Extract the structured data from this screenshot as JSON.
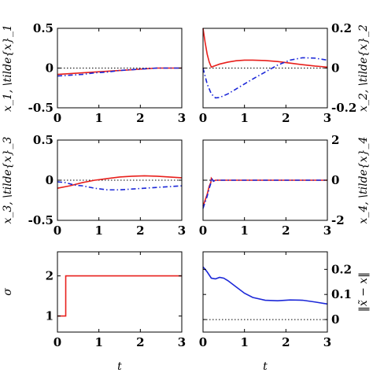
{
  "colors": {
    "red": "#e8201c",
    "blue": "#1c28d8",
    "ref": "#000000"
  },
  "chart_data": [
    {
      "id": "x1",
      "type": "line",
      "ylabel": "x_1, \\tilde{x}_1",
      "ylabel_side": "left",
      "xlim": [
        0,
        3
      ],
      "ylim": [
        -0.5,
        0.5
      ],
      "xticks": [
        "0",
        "1",
        "2",
        "3"
      ],
      "yticks": [
        {
          "v": -0.5,
          "t": "-0.5"
        },
        {
          "v": 0,
          "t": "0"
        },
        {
          "v": 0.5,
          "t": "0.5"
        }
      ],
      "zero_line": 0,
      "series": [
        {
          "style": "solid",
          "color": "#e8201c",
          "x": [
            0,
            0.3,
            0.6,
            0.9,
            1.2,
            1.5,
            1.8,
            2.1,
            2.4,
            2.7,
            3.0
          ],
          "y": [
            -0.08,
            -0.07,
            -0.06,
            -0.05,
            -0.04,
            -0.03,
            -0.02,
            -0.01,
            0,
            0,
            0
          ]
        },
        {
          "style": "dashdot",
          "color": "#1c28d8",
          "x": [
            0,
            0.3,
            0.6,
            0.9,
            1.2,
            1.5,
            1.8,
            2.1,
            2.4,
            2.7,
            3.0
          ],
          "y": [
            -0.1,
            -0.09,
            -0.08,
            -0.06,
            -0.05,
            -0.03,
            -0.02,
            -0.01,
            0,
            0,
            0
          ]
        }
      ]
    },
    {
      "id": "x2",
      "type": "line",
      "ylabel": "x_2, \\tilde{x}_2",
      "ylabel_side": "right",
      "xlim": [
        0,
        3
      ],
      "ylim": [
        -0.2,
        0.2
      ],
      "xticks": [
        "0",
        "1",
        "2",
        "3"
      ],
      "yticks": [
        {
          "v": -0.2,
          "t": "-0.2"
        },
        {
          "v": 0,
          "t": "0"
        },
        {
          "v": 0.2,
          "t": "0.2"
        }
      ],
      "zero_line": 0,
      "series": [
        {
          "style": "solid",
          "color": "#e8201c",
          "x": [
            0,
            0.05,
            0.1,
            0.15,
            0.2,
            0.4,
            0.6,
            0.8,
            1.0,
            1.2,
            1.5,
            1.8,
            2.1,
            2.4,
            2.7,
            3.0
          ],
          "y": [
            0.2,
            0.13,
            0.07,
            0.03,
            0.005,
            0.02,
            0.03,
            0.037,
            0.04,
            0.04,
            0.038,
            0.033,
            0.025,
            0.017,
            0.01,
            0.005
          ]
        },
        {
          "style": "dashdot",
          "color": "#1c28d8",
          "x": [
            0,
            0.1,
            0.2,
            0.3,
            0.4,
            0.6,
            0.8,
            1.0,
            1.2,
            1.5,
            1.8,
            2.1,
            2.4,
            2.7,
            3.0
          ],
          "y": [
            0,
            -0.08,
            -0.13,
            -0.15,
            -0.148,
            -0.13,
            -0.105,
            -0.08,
            -0.055,
            -0.02,
            0.015,
            0.04,
            0.052,
            0.05,
            0.04
          ]
        }
      ]
    },
    {
      "id": "x3",
      "type": "line",
      "ylabel": "x_3, \\tilde{x}_3",
      "ylabel_side": "left",
      "xlim": [
        0,
        3
      ],
      "ylim": [
        -0.5,
        0.5
      ],
      "xticks": [
        "0",
        "1",
        "2",
        "3"
      ],
      "yticks": [
        {
          "v": -0.5,
          "t": "-0.5"
        },
        {
          "v": 0,
          "t": "0"
        },
        {
          "v": 0.5,
          "t": "0.5"
        }
      ],
      "zero_line": 0,
      "series": [
        {
          "style": "solid",
          "color": "#e8201c",
          "x": [
            0,
            0.3,
            0.6,
            0.9,
            1.2,
            1.5,
            1.8,
            2.1,
            2.4,
            2.7,
            3.0
          ],
          "y": [
            -0.1,
            -0.07,
            -0.03,
            0,
            0.02,
            0.04,
            0.05,
            0.055,
            0.05,
            0.04,
            0.03
          ]
        },
        {
          "style": "dashdot",
          "color": "#1c28d8",
          "x": [
            0,
            0.2,
            0.4,
            0.6,
            0.9,
            1.2,
            1.5,
            1.8,
            2.1,
            2.4,
            2.7,
            3.0
          ],
          "y": [
            -0.02,
            -0.03,
            -0.06,
            -0.07,
            -0.1,
            -0.12,
            -0.12,
            -0.11,
            -0.1,
            -0.09,
            -0.08,
            -0.07
          ]
        }
      ]
    },
    {
      "id": "x4",
      "type": "line",
      "ylabel": "x_4, \\tilde{x}_4",
      "ylabel_side": "right",
      "xlim": [
        0,
        3
      ],
      "ylim": [
        -2,
        2
      ],
      "xticks": [
        "0",
        "1",
        "2",
        "3"
      ],
      "yticks": [
        {
          "v": -2,
          "t": "-2"
        },
        {
          "v": 0,
          "t": "0"
        },
        {
          "v": 2,
          "t": "2"
        }
      ],
      "zero_line": 0,
      "series": [
        {
          "style": "solid",
          "color": "#e8201c",
          "x": [
            0,
            0.05,
            0.1,
            0.15,
            0.19,
            0.2,
            0.22,
            0.25,
            0.3,
            0.5,
            1.0,
            1.5,
            2.0,
            2.5,
            3.0
          ],
          "y": [
            -1.3,
            -1.0,
            -0.7,
            -0.3,
            -0.1,
            0.1,
            0.05,
            -0.05,
            0,
            0,
            0,
            0,
            0,
            0,
            0
          ]
        },
        {
          "style": "dashdot",
          "color": "#1c28d8",
          "x": [
            0,
            0.05,
            0.1,
            0.15,
            0.19,
            0.2,
            0.22,
            0.25,
            0.3,
            0.5,
            1.0,
            1.5,
            2.0,
            2.5,
            3.0
          ],
          "y": [
            -1.4,
            -1.1,
            -0.8,
            -0.4,
            -0.15,
            0.1,
            0.05,
            -0.05,
            0,
            0,
            0,
            0,
            0,
            0,
            0
          ]
        }
      ]
    },
    {
      "id": "sigma",
      "type": "line",
      "ylabel": "σ",
      "ylabel_side": "left",
      "xlabel": "t",
      "xlim": [
        0,
        3
      ],
      "ylim": [
        0.6,
        2.6
      ],
      "xticks": [
        "0",
        "1",
        "2",
        "3"
      ],
      "yticks": [
        {
          "v": 1,
          "t": "1"
        },
        {
          "v": 2,
          "t": "2"
        }
      ],
      "zero_line": null,
      "series": [
        {
          "style": "solid",
          "color": "#e8201c",
          "x": [
            0,
            0.2,
            0.2,
            3.0
          ],
          "y": [
            1,
            1,
            2,
            2
          ]
        }
      ]
    },
    {
      "id": "err",
      "type": "line",
      "ylabel": "‖x̃ − x‖",
      "ylabel_side": "right",
      "xlabel": "t",
      "xlim": [
        0,
        3
      ],
      "ylim": [
        -0.05,
        0.27
      ],
      "xticks": [
        "0",
        "1",
        "2",
        "3"
      ],
      "yticks": [
        {
          "v": 0,
          "t": "0"
        },
        {
          "v": 0.1,
          "t": "0.1"
        },
        {
          "v": 0.2,
          "t": "0.2"
        }
      ],
      "zero_line": 0,
      "series": [
        {
          "style": "solid",
          "color": "#1c28d8",
          "x": [
            0,
            0.1,
            0.2,
            0.3,
            0.4,
            0.5,
            0.6,
            0.8,
            1.0,
            1.2,
            1.5,
            1.8,
            2.1,
            2.4,
            2.7,
            3.0
          ],
          "y": [
            0.21,
            0.19,
            0.165,
            0.162,
            0.168,
            0.165,
            0.155,
            0.13,
            0.105,
            0.088,
            0.077,
            0.075,
            0.078,
            0.077,
            0.07,
            0.062
          ]
        }
      ]
    }
  ]
}
